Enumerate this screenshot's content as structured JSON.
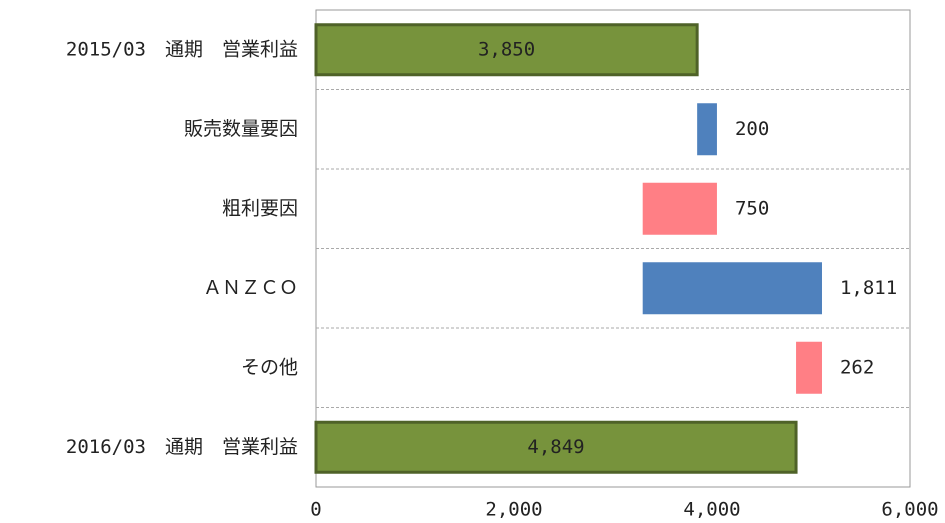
{
  "chart_data": {
    "type": "waterfall",
    "categories": [
      "2015/03　通期　営業利益",
      "販売数量要因",
      "粗利要因",
      "ＡＮＺＣＯ",
      "その他",
      "2016/03　通期　営業利益"
    ],
    "values": [
      3850,
      200,
      -750,
      1811,
      -262,
      4849
    ],
    "value_labels": [
      "3,850",
      "200",
      "750",
      "1,811",
      "262",
      "4,849"
    ],
    "colors": {
      "total": "#77933c",
      "increase": "#4f81bd",
      "decrease": "#ff7f85"
    },
    "xlim": [
      0,
      6000
    ],
    "xticks": [
      0,
      {
        "value": 2000,
        "label": "2,000"
      },
      {
        "value": 4000,
        "label": "4,000"
      },
      {
        "value": 6000,
        "label": "6,000"
      }
    ]
  }
}
